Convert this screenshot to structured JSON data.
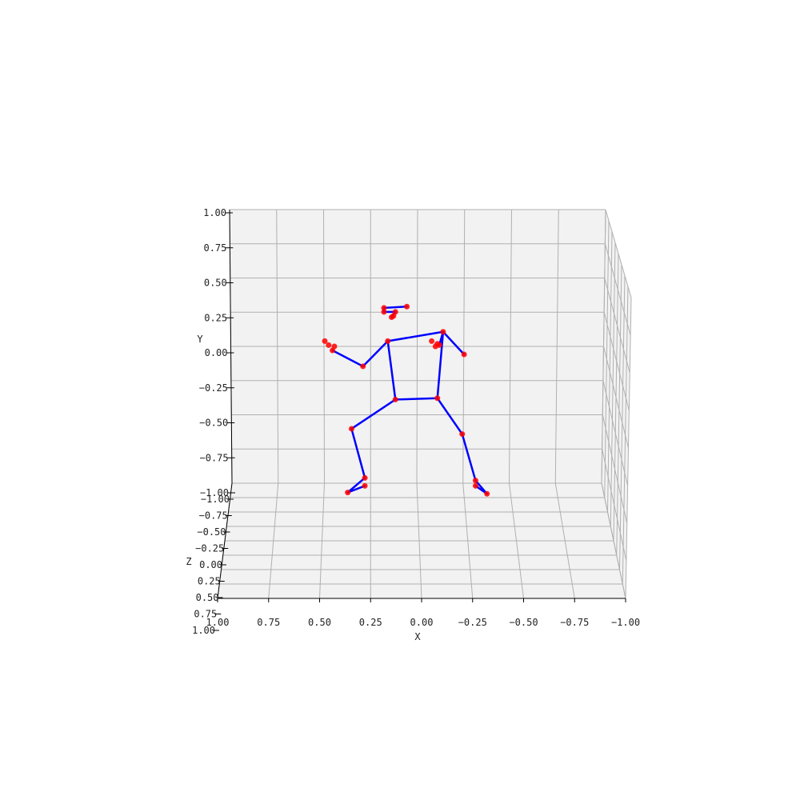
{
  "chart_data": {
    "type": "scatter",
    "projection": "3d",
    "grid": true,
    "point_color": "#ff0000",
    "bone_color": "#0000ff",
    "pane_color": "#f2f2f2",
    "grid_color": "#b0b0b0",
    "axes": {
      "x": {
        "label": "X",
        "range": [
          1.0,
          -1.0
        ],
        "ticks": [
          "1.00",
          "0.75",
          "0.50",
          "0.25",
          "0.00",
          "−0.25",
          "−0.50",
          "−0.75",
          "−1.00"
        ]
      },
      "y": {
        "label": "Y",
        "range": [
          -1.0,
          1.0
        ],
        "ticks": [
          "1.00",
          "0.75",
          "0.50",
          "0.25",
          "0.00",
          "−0.25",
          "−0.50",
          "−0.75",
          "−1.00"
        ]
      },
      "z": {
        "label": "Z",
        "range": [
          -1.0,
          1.0
        ],
        "ticks": [
          "−1.00",
          "−0.75",
          "−0.50",
          "−0.25",
          "0.00",
          "0.25",
          "0.50",
          "0.75",
          "1.00"
        ]
      }
    },
    "joints": [
      {
        "id": "nose",
        "x": 0.17,
        "y": 0.32
      },
      {
        "id": "head_right",
        "x": 0.05,
        "y": 0.33
      },
      {
        "id": "head_a",
        "x": 0.17,
        "y": 0.29
      },
      {
        "id": "head_b",
        "x": 0.11,
        "y": 0.29
      },
      {
        "id": "head_c",
        "x": 0.13,
        "y": 0.25
      },
      {
        "id": "head_d",
        "x": 0.12,
        "y": 0.26
      },
      {
        "id": "left_shoulder",
        "x": 0.15,
        "y": 0.07
      },
      {
        "id": "right_shoulder",
        "x": -0.14,
        "y": 0.14
      },
      {
        "id": "left_elbow",
        "x": 0.28,
        "y": -0.12
      },
      {
        "id": "right_elbow",
        "x": -0.25,
        "y": -0.03
      },
      {
        "id": "left_wrist",
        "x": 0.44,
        "y": 0.0
      },
      {
        "id": "left_hand_a",
        "x": 0.48,
        "y": 0.07
      },
      {
        "id": "left_hand_b",
        "x": 0.46,
        "y": 0.04
      },
      {
        "id": "left_hand_c",
        "x": 0.43,
        "y": 0.03
      },
      {
        "id": "right_wrist",
        "x": -0.12,
        "y": 0.04
      },
      {
        "id": "right_hand_a",
        "x": -0.08,
        "y": 0.07
      },
      {
        "id": "right_hand_b",
        "x": -0.11,
        "y": 0.05
      },
      {
        "id": "right_hand_c",
        "x": -0.1,
        "y": 0.03
      },
      {
        "id": "left_hip",
        "x": 0.11,
        "y": -0.37
      },
      {
        "id": "right_hip",
        "x": -0.11,
        "y": -0.36
      },
      {
        "id": "left_knee",
        "x": 0.34,
        "y": -0.59
      },
      {
        "id": "right_knee",
        "x": -0.24,
        "y": -0.63
      },
      {
        "id": "left_ankle",
        "x": 0.27,
        "y": -0.96
      },
      {
        "id": "left_heel",
        "x": 0.27,
        "y": -1.02
      },
      {
        "id": "left_foot",
        "x": 0.36,
        "y": -1.07
      },
      {
        "id": "right_ankle",
        "x": -0.31,
        "y": -0.98
      },
      {
        "id": "right_heel",
        "x": -0.31,
        "y": -1.02
      },
      {
        "id": "right_foot",
        "x": -0.37,
        "y": -1.08
      }
    ],
    "bones": [
      [
        "nose",
        "head_right"
      ],
      [
        "nose",
        "head_a"
      ],
      [
        "head_a",
        "head_b"
      ],
      [
        "head_b",
        "head_c"
      ],
      [
        "left_shoulder",
        "right_shoulder"
      ],
      [
        "left_shoulder",
        "left_elbow"
      ],
      [
        "left_elbow",
        "left_wrist"
      ],
      [
        "right_shoulder",
        "right_elbow"
      ],
      [
        "right_shoulder",
        "right_wrist"
      ],
      [
        "left_shoulder",
        "left_hip"
      ],
      [
        "right_shoulder",
        "right_hip"
      ],
      [
        "left_hip",
        "right_hip"
      ],
      [
        "left_hip",
        "left_knee"
      ],
      [
        "left_knee",
        "left_ankle"
      ],
      [
        "left_ankle",
        "left_foot"
      ],
      [
        "left_foot",
        "left_heel"
      ],
      [
        "right_hip",
        "right_knee"
      ],
      [
        "right_knee",
        "right_ankle"
      ],
      [
        "right_ankle",
        "right_foot"
      ],
      [
        "right_foot",
        "right_heel"
      ]
    ]
  }
}
